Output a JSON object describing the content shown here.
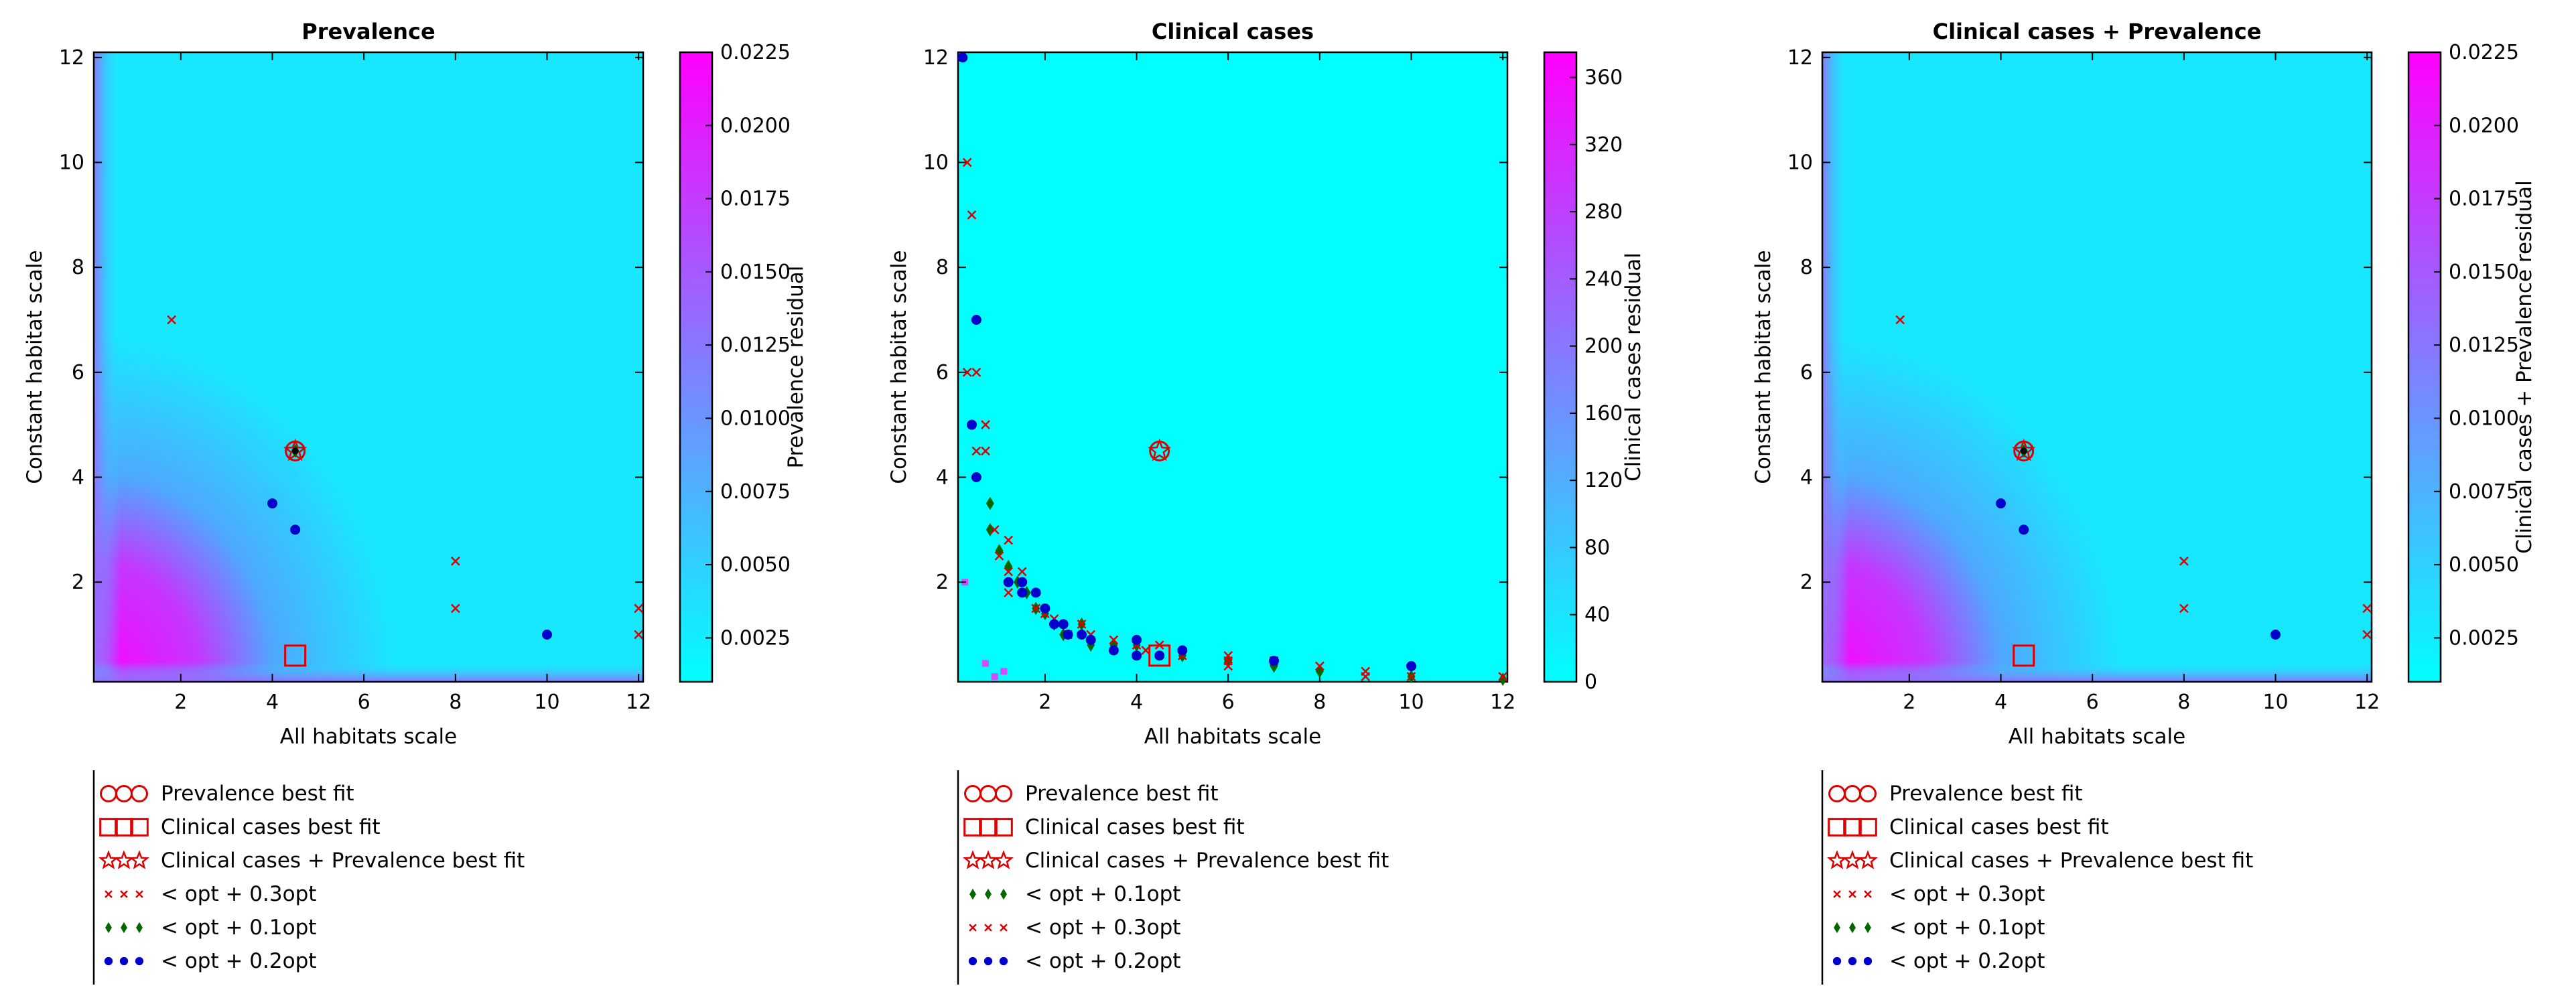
{
  "figure": {
    "x_axis_label": "All habitats scale",
    "y_axis_label": "Constant habitat scale",
    "x_ticks": [
      2,
      4,
      6,
      8,
      10,
      12
    ],
    "y_ticks": [
      2,
      4,
      6,
      8,
      10,
      12
    ],
    "x_range": [
      0.1,
      12.1
    ],
    "y_range": [
      0.1,
      12.1
    ],
    "colormap": [
      "#00ffff",
      "#ff00ff"
    ],
    "marker_colors": {
      "red": "#dd0000",
      "green": "#006600",
      "blue": "#0000cc",
      "black": "#000000"
    }
  },
  "chart_data": [
    {
      "type": "heatmap",
      "title": "Prevalence",
      "xlabel": "All habitats scale",
      "ylabel": "Constant habitat scale",
      "xlim": [
        0.1,
        12.1
      ],
      "ylim": [
        0.1,
        12.1
      ],
      "grid": false,
      "colorbar": {
        "label": "Prevalence residual",
        "ticks": [
          "0.0025",
          "0.0050",
          "0.0075",
          "0.0100",
          "0.0125",
          "0.0150",
          "0.0175",
          "0.0200",
          "0.0225"
        ],
        "tick_values": [
          0.0025,
          0.005,
          0.0075,
          0.01,
          0.0125,
          0.015,
          0.0175,
          0.02,
          0.0225
        ],
        "range": [
          0.001,
          0.0225
        ]
      },
      "heatmap": {
        "background_value": 0.0035,
        "corner_value": 0.0225
      },
      "series": [
        {
          "name": "Prevalence best fit",
          "marker": "circle",
          "color": "red",
          "points": [
            [
              4.5,
              4.5
            ]
          ]
        },
        {
          "name": "Clinical cases best fit",
          "marker": "square",
          "color": "red",
          "points": [
            [
              4.5,
              0.6
            ]
          ]
        },
        {
          "name": "Clinical cases + Prevalence best fit",
          "marker": "star",
          "color": "red",
          "points": [
            [
              4.5,
              4.5
            ]
          ]
        },
        {
          "name": "< opt + 0.3opt",
          "marker": "x",
          "color": "red",
          "points": [
            [
              1.8,
              7.0
            ],
            [
              8.0,
              2.4
            ],
            [
              8.0,
              1.5
            ],
            [
              12.0,
              1.5
            ],
            [
              12.0,
              1.0
            ]
          ]
        },
        {
          "name": "< opt + 0.1opt",
          "marker": "diamond",
          "color": "green",
          "points": [
            [
              4.5,
              4.5
            ]
          ]
        },
        {
          "name": "< opt + 0.2opt",
          "marker": "dot",
          "color": "blue",
          "points": [
            [
              4.0,
              3.5
            ],
            [
              4.5,
              3.0
            ],
            [
              10.0,
              1.0
            ]
          ]
        }
      ],
      "legend": {
        "placement": "below",
        "entries": [
          {
            "label": "Prevalence best fit",
            "marker": "circle",
            "color": "red"
          },
          {
            "label": "Clinical cases best fit",
            "marker": "square",
            "color": "red"
          },
          {
            "label": "Clinical cases + Prevalence best fit",
            "marker": "star",
            "color": "red"
          },
          {
            "label": "< opt + 0.3opt",
            "marker": "x",
            "color": "red"
          },
          {
            "label": "< opt + 0.1opt",
            "marker": "diamond",
            "color": "green"
          },
          {
            "label": "< opt + 0.2opt",
            "marker": "dot",
            "color": "blue"
          }
        ]
      }
    },
    {
      "type": "heatmap",
      "title": "Clinical cases",
      "xlabel": "All habitats scale",
      "ylabel": "Constant habitat scale",
      "xlim": [
        0.1,
        12.1
      ],
      "ylim": [
        0.1,
        12.1
      ],
      "grid": false,
      "colorbar": {
        "label": "Clinical cases residual",
        "ticks": [
          "0",
          "40",
          "80",
          "120",
          "160",
          "200",
          "240",
          "280",
          "320",
          "360"
        ],
        "tick_values": [
          0,
          40,
          80,
          120,
          160,
          200,
          240,
          280,
          320,
          360
        ],
        "range": [
          0,
          375
        ]
      },
      "heatmap": {
        "background_value": 5,
        "corner_value": 300
      },
      "series": [
        {
          "name": "Prevalence best fit",
          "marker": "circle",
          "color": "red",
          "points": [
            [
              4.5,
              4.5
            ]
          ]
        },
        {
          "name": "Clinical cases best fit",
          "marker": "square",
          "color": "red",
          "points": [
            [
              4.5,
              0.6
            ]
          ]
        },
        {
          "name": "Clinical cases + Prevalence best fit",
          "marker": "star",
          "color": "red",
          "points": [
            [
              4.5,
              4.5
            ]
          ]
        },
        {
          "name": "< opt + 0.1opt",
          "marker": "diamond",
          "color": "green",
          "points": [
            [
              0.8,
              3.5
            ],
            [
              0.8,
              3.0
            ],
            [
              1.0,
              2.6
            ],
            [
              1.2,
              2.3
            ],
            [
              1.4,
              2.0
            ],
            [
              1.6,
              1.8
            ],
            [
              1.8,
              1.5
            ],
            [
              2.0,
              1.4
            ],
            [
              2.2,
              1.2
            ],
            [
              2.4,
              1.0
            ],
            [
              2.8,
              1.2
            ],
            [
              3.0,
              0.8
            ],
            [
              3.5,
              0.8
            ],
            [
              4.0,
              0.8
            ],
            [
              5.0,
              0.6
            ],
            [
              6.0,
              0.5
            ],
            [
              7.0,
              0.4
            ],
            [
              8.0,
              0.3
            ],
            [
              10.0,
              0.2
            ],
            [
              12.0,
              0.15
            ]
          ]
        },
        {
          "name": "< opt + 0.3opt",
          "marker": "x",
          "color": "red",
          "points": [
            [
              0.3,
              10.0
            ],
            [
              0.4,
              9.0
            ],
            [
              0.3,
              6.0
            ],
            [
              0.5,
              6.0
            ],
            [
              0.5,
              4.5
            ],
            [
              0.7,
              4.5
            ],
            [
              0.7,
              5.0
            ],
            [
              0.9,
              3.0
            ],
            [
              1.0,
              2.5
            ],
            [
              1.2,
              2.8
            ],
            [
              1.2,
              2.2
            ],
            [
              1.2,
              1.8
            ],
            [
              1.5,
              2.2
            ],
            [
              1.8,
              1.5
            ],
            [
              2.0,
              1.4
            ],
            [
              2.2,
              1.3
            ],
            [
              2.5,
              1.0
            ],
            [
              2.8,
              1.2
            ],
            [
              3.0,
              1.0
            ],
            [
              3.5,
              0.9
            ],
            [
              4.0,
              0.8
            ],
            [
              4.2,
              0.7
            ],
            [
              4.5,
              0.8
            ],
            [
              5.0,
              0.6
            ],
            [
              6.0,
              0.6
            ],
            [
              6.0,
              0.5
            ],
            [
              6.0,
              0.4
            ],
            [
              7.0,
              0.5
            ],
            [
              8.0,
              0.4
            ],
            [
              9.0,
              0.3
            ],
            [
              9.0,
              0.2
            ],
            [
              10.0,
              0.2
            ],
            [
              12.0,
              0.2
            ]
          ]
        },
        {
          "name": "< opt + 0.2opt",
          "marker": "dot",
          "color": "blue",
          "points": [
            [
              0.2,
              12.0
            ],
            [
              0.5,
              7.0
            ],
            [
              0.4,
              5.0
            ],
            [
              0.5,
              4.0
            ],
            [
              1.2,
              2.0
            ],
            [
              1.5,
              2.0
            ],
            [
              1.5,
              1.8
            ],
            [
              1.8,
              1.8
            ],
            [
              2.0,
              1.5
            ],
            [
              2.2,
              1.2
            ],
            [
              2.4,
              1.2
            ],
            [
              2.5,
              1.0
            ],
            [
              2.8,
              1.0
            ],
            [
              3.0,
              0.9
            ],
            [
              3.5,
              0.7
            ],
            [
              4.0,
              0.9
            ],
            [
              4.0,
              0.6
            ],
            [
              4.5,
              0.6
            ],
            [
              5.0,
              0.7
            ],
            [
              7.0,
              0.5
            ],
            [
              10.0,
              0.4
            ]
          ]
        }
      ],
      "legend": {
        "placement": "below",
        "entries": [
          {
            "label": "Prevalence best fit",
            "marker": "circle",
            "color": "red"
          },
          {
            "label": "Clinical cases best fit",
            "marker": "square",
            "color": "red"
          },
          {
            "label": "Clinical cases + Prevalence best fit",
            "marker": "star",
            "color": "red"
          },
          {
            "label": "< opt + 0.1opt",
            "marker": "diamond",
            "color": "green"
          },
          {
            "label": "< opt + 0.3opt",
            "marker": "x",
            "color": "red"
          },
          {
            "label": "< opt + 0.2opt",
            "marker": "dot",
            "color": "blue"
          }
        ]
      }
    },
    {
      "type": "heatmap",
      "title": "Clinical cases + Prevalence",
      "xlabel": "All habitats scale",
      "ylabel": "Constant habitat scale",
      "xlim": [
        0.1,
        12.1
      ],
      "ylim": [
        0.1,
        12.1
      ],
      "grid": false,
      "colorbar": {
        "label": "Clinical cases + Prevalence residual",
        "ticks": [
          "0.0025",
          "0.0050",
          "0.0075",
          "0.0100",
          "0.0125",
          "0.0150",
          "0.0175",
          "0.0200",
          "0.0225"
        ],
        "tick_values": [
          0.0025,
          0.005,
          0.0075,
          0.01,
          0.0125,
          0.015,
          0.0175,
          0.02,
          0.0225
        ],
        "range": [
          0.001,
          0.0225
        ]
      },
      "heatmap": {
        "background_value": 0.0035,
        "corner_value": 0.0225
      },
      "series": [
        {
          "name": "Prevalence best fit",
          "marker": "circle",
          "color": "red",
          "points": [
            [
              4.5,
              4.5
            ]
          ]
        },
        {
          "name": "Clinical cases best fit",
          "marker": "square",
          "color": "red",
          "points": [
            [
              4.5,
              0.6
            ]
          ]
        },
        {
          "name": "Clinical cases + Prevalence best fit",
          "marker": "star",
          "color": "red",
          "points": [
            [
              4.5,
              4.5
            ]
          ]
        },
        {
          "name": "< opt + 0.3opt",
          "marker": "x",
          "color": "red",
          "points": [
            [
              1.8,
              7.0
            ],
            [
              8.0,
              2.4
            ],
            [
              8.0,
              1.5
            ],
            [
              12.0,
              1.5
            ],
            [
              12.0,
              1.0
            ]
          ]
        },
        {
          "name": "< opt + 0.1opt",
          "marker": "diamond",
          "color": "green",
          "points": [
            [
              4.5,
              4.5
            ]
          ]
        },
        {
          "name": "< opt + 0.2opt",
          "marker": "dot",
          "color": "blue",
          "points": [
            [
              4.0,
              3.5
            ],
            [
              4.5,
              3.0
            ],
            [
              10.0,
              1.0
            ]
          ]
        }
      ],
      "legend": {
        "placement": "below",
        "entries": [
          {
            "label": "Prevalence best fit",
            "marker": "circle",
            "color": "red"
          },
          {
            "label": "Clinical cases best fit",
            "marker": "square",
            "color": "red"
          },
          {
            "label": "Clinical cases + Prevalence best fit",
            "marker": "star",
            "color": "red"
          },
          {
            "label": "< opt + 0.3opt",
            "marker": "x",
            "color": "red"
          },
          {
            "label": "< opt + 0.1opt",
            "marker": "diamond",
            "color": "green"
          },
          {
            "label": "< opt + 0.2opt",
            "marker": "dot",
            "color": "blue"
          }
        ]
      }
    }
  ]
}
